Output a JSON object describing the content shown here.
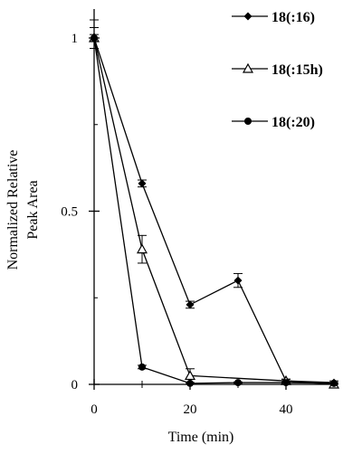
{
  "chart_data": {
    "type": "line",
    "title": "",
    "xlabel": "Time (min)",
    "ylabel": [
      "Normalized Relative",
      "Peak Area"
    ],
    "xlim": [
      0,
      52
    ],
    "ylim": [
      0,
      1.04
    ],
    "x_ticks": [
      0,
      20,
      40
    ],
    "y_ticks": [
      0,
      0.5,
      1
    ],
    "y_tick_labels": [
      "0",
      "0.5",
      "1"
    ],
    "x_tick_labels": [
      "0",
      "20",
      "40"
    ],
    "grid": false,
    "legend_position": "top-right",
    "series": [
      {
        "name": "18(:16)",
        "marker": "diamond",
        "x": [
          0,
          10,
          20,
          30,
          40,
          50
        ],
        "y": [
          1.0,
          0.58,
          0.23,
          0.3,
          0.01,
          0.005
        ],
        "err": [
          0.03,
          0.01,
          0.01,
          0.02,
          0.005,
          0.005
        ]
      },
      {
        "name": "18(:15h)",
        "marker": "triangle-open",
        "x": [
          0,
          10,
          20,
          40,
          50
        ],
        "y": [
          1.0,
          0.39,
          0.025,
          0.01,
          0.0
        ],
        "err": [
          0.03,
          0.04,
          0.02,
          0.005,
          0.005
        ]
      },
      {
        "name": "18(:20)",
        "marker": "circle",
        "x": [
          0,
          10,
          20,
          30,
          40,
          50
        ],
        "y": [
          1.0,
          0.05,
          0.003,
          0.005,
          0.005,
          0.003
        ],
        "err": [
          0.01,
          0.005,
          0.002,
          0.002,
          0.002,
          0.002
        ]
      }
    ]
  }
}
